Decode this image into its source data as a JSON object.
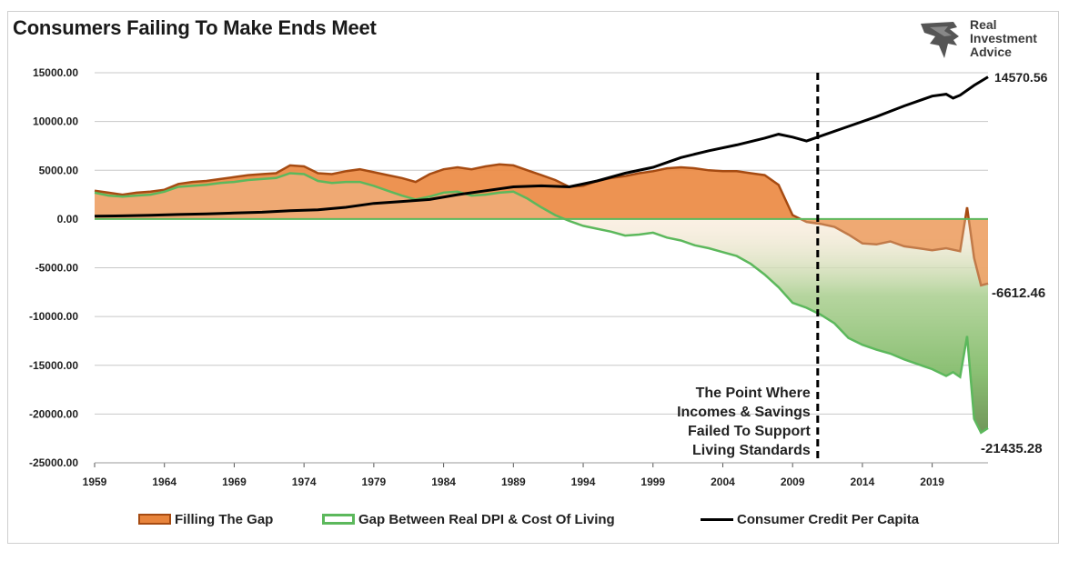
{
  "chart_data": {
    "type": "area",
    "title": "Consumers Failing To Make Ends Meet",
    "x_range": [
      1959,
      2023
    ],
    "ylim": [
      -25000,
      15000
    ],
    "y_ticks": [
      "15000.00",
      "10000.00",
      "5000.00",
      "0.00",
      "-5000.00",
      "-10000.00",
      "-15000.00",
      "-20000.00",
      "-25000.00"
    ],
    "x_ticks": [
      "1959",
      "1964",
      "1969",
      "1974",
      "1979",
      "1984",
      "1989",
      "1994",
      "1999",
      "2004",
      "2009",
      "2014",
      "2019"
    ],
    "grid": true,
    "legend_position": "bottom",
    "series": [
      {
        "name": "Filling The Gap",
        "style": "area",
        "color": "#e8843c",
        "x": [
          1959,
          1960,
          1961,
          1962,
          1963,
          1964,
          1965,
          1966,
          1967,
          1968,
          1969,
          1970,
          1971,
          1972,
          1973,
          1974,
          1975,
          1976,
          1977,
          1978,
          1979,
          1980,
          1981,
          1982,
          1983,
          1984,
          1985,
          1986,
          1987,
          1988,
          1989,
          1990,
          1991,
          1992,
          1993,
          1994,
          1995,
          1996,
          1997,
          1998,
          1999,
          2000,
          2001,
          2002,
          2003,
          2004,
          2005,
          2006,
          2007,
          2008,
          2009,
          2010,
          2011,
          2012,
          2013,
          2014,
          2015,
          2016,
          2017,
          2018,
          2019,
          2020,
          2021,
          2021.5,
          2022,
          2022.5,
          2023
        ],
        "values": [
          2900,
          2700,
          2500,
          2700,
          2800,
          3000,
          3600,
          3800,
          3900,
          4100,
          4300,
          4500,
          4600,
          4700,
          5500,
          5400,
          4700,
          4600,
          4900,
          5100,
          4800,
          4500,
          4200,
          3800,
          4600,
          5100,
          5300,
          5100,
          5400,
          5600,
          5500,
          5000,
          4500,
          4000,
          3300,
          3400,
          3900,
          4200,
          4400,
          4700,
          4900,
          5200,
          5300,
          5200,
          5000,
          4900,
          4900,
          4700,
          4500,
          3500,
          400,
          -300,
          -500,
          -800,
          -1600,
          -2500,
          -2600,
          -2300,
          -2800,
          -3000,
          -3200,
          -3000,
          -3300,
          1200,
          -4000,
          -6800,
          -6612.46
        ]
      },
      {
        "name": "Gap Between Real DPI & Cost Of Living",
        "style": "area",
        "color": "#5cb85c",
        "x": [
          1959,
          1960,
          1961,
          1962,
          1963,
          1964,
          1965,
          1966,
          1967,
          1968,
          1969,
          1970,
          1971,
          1972,
          1973,
          1974,
          1975,
          1976,
          1977,
          1978,
          1979,
          1980,
          1981,
          1982,
          1983,
          1984,
          1985,
          1986,
          1987,
          1988,
          1989,
          1990,
          1991,
          1992,
          1993,
          1994,
          1995,
          1996,
          1997,
          1998,
          1999,
          2000,
          2001,
          2002,
          2003,
          2004,
          2005,
          2006,
          2007,
          2008,
          2009,
          2010,
          2011,
          2012,
          2013,
          2014,
          2015,
          2016,
          2017,
          2018,
          2019,
          2020,
          2020.5,
          2021,
          2021.5,
          2022,
          2022.5,
          2023
        ],
        "values": [
          2700,
          2400,
          2300,
          2400,
          2500,
          2800,
          3300,
          3400,
          3500,
          3700,
          3800,
          4000,
          4100,
          4200,
          4700,
          4600,
          3900,
          3700,
          3800,
          3800,
          3400,
          2900,
          2400,
          2000,
          2300,
          2700,
          2800,
          2400,
          2500,
          2700,
          2800,
          2100,
          1200,
          400,
          -200,
          -700,
          -1000,
          -1300,
          -1700,
          -1600,
          -1400,
          -1900,
          -2200,
          -2700,
          -3000,
          -3400,
          -3800,
          -4600,
          -5700,
          -7000,
          -8600,
          -9100,
          -9800,
          -10700,
          -12200,
          -12900,
          -13400,
          -13800,
          -14400,
          -14900,
          -15400,
          -16100,
          -15700,
          -16200,
          -12000,
          -20500,
          -21900,
          -21435.28
        ]
      },
      {
        "name": "Consumer Credit Per Capita",
        "style": "line",
        "color": "#000000",
        "x": [
          1959,
          1961,
          1963,
          1965,
          1967,
          1969,
          1971,
          1973,
          1975,
          1977,
          1979,
          1981,
          1983,
          1985,
          1987,
          1989,
          1991,
          1993,
          1995,
          1997,
          1999,
          2001,
          2003,
          2005,
          2007,
          2008,
          2009,
          2010,
          2011,
          2013,
          2015,
          2017,
          2019,
          2020,
          2020.5,
          2021,
          2022,
          2023
        ],
        "values": [
          300,
          320,
          380,
          460,
          530,
          610,
          700,
          850,
          950,
          1200,
          1600,
          1800,
          2000,
          2500,
          2900,
          3300,
          3400,
          3300,
          3900,
          4700,
          5300,
          6300,
          7000,
          7600,
          8300,
          8700,
          8400,
          8000,
          8500,
          9500,
          10500,
          11600,
          12600,
          12800,
          12400,
          12700,
          13700,
          14570.56
        ]
      }
    ],
    "annotations": {
      "event_lines": [
        "The Point Where",
        "Incomes & Savings",
        "Failed To Support",
        "Living Standards"
      ],
      "event_x": 2010.8,
      "end_credit": "14570.56",
      "end_filling": "-6612.46",
      "end_gap": "-21435.28"
    }
  },
  "brand": {
    "line1": "Real",
    "line2": "Investment",
    "line3": "Advice"
  },
  "colors": {
    "orange": "#e8843c",
    "orange_dark": "#a64b12",
    "green": "#5cb85c",
    "green_dark": "#1e6b1e",
    "red": "#cc0000"
  }
}
